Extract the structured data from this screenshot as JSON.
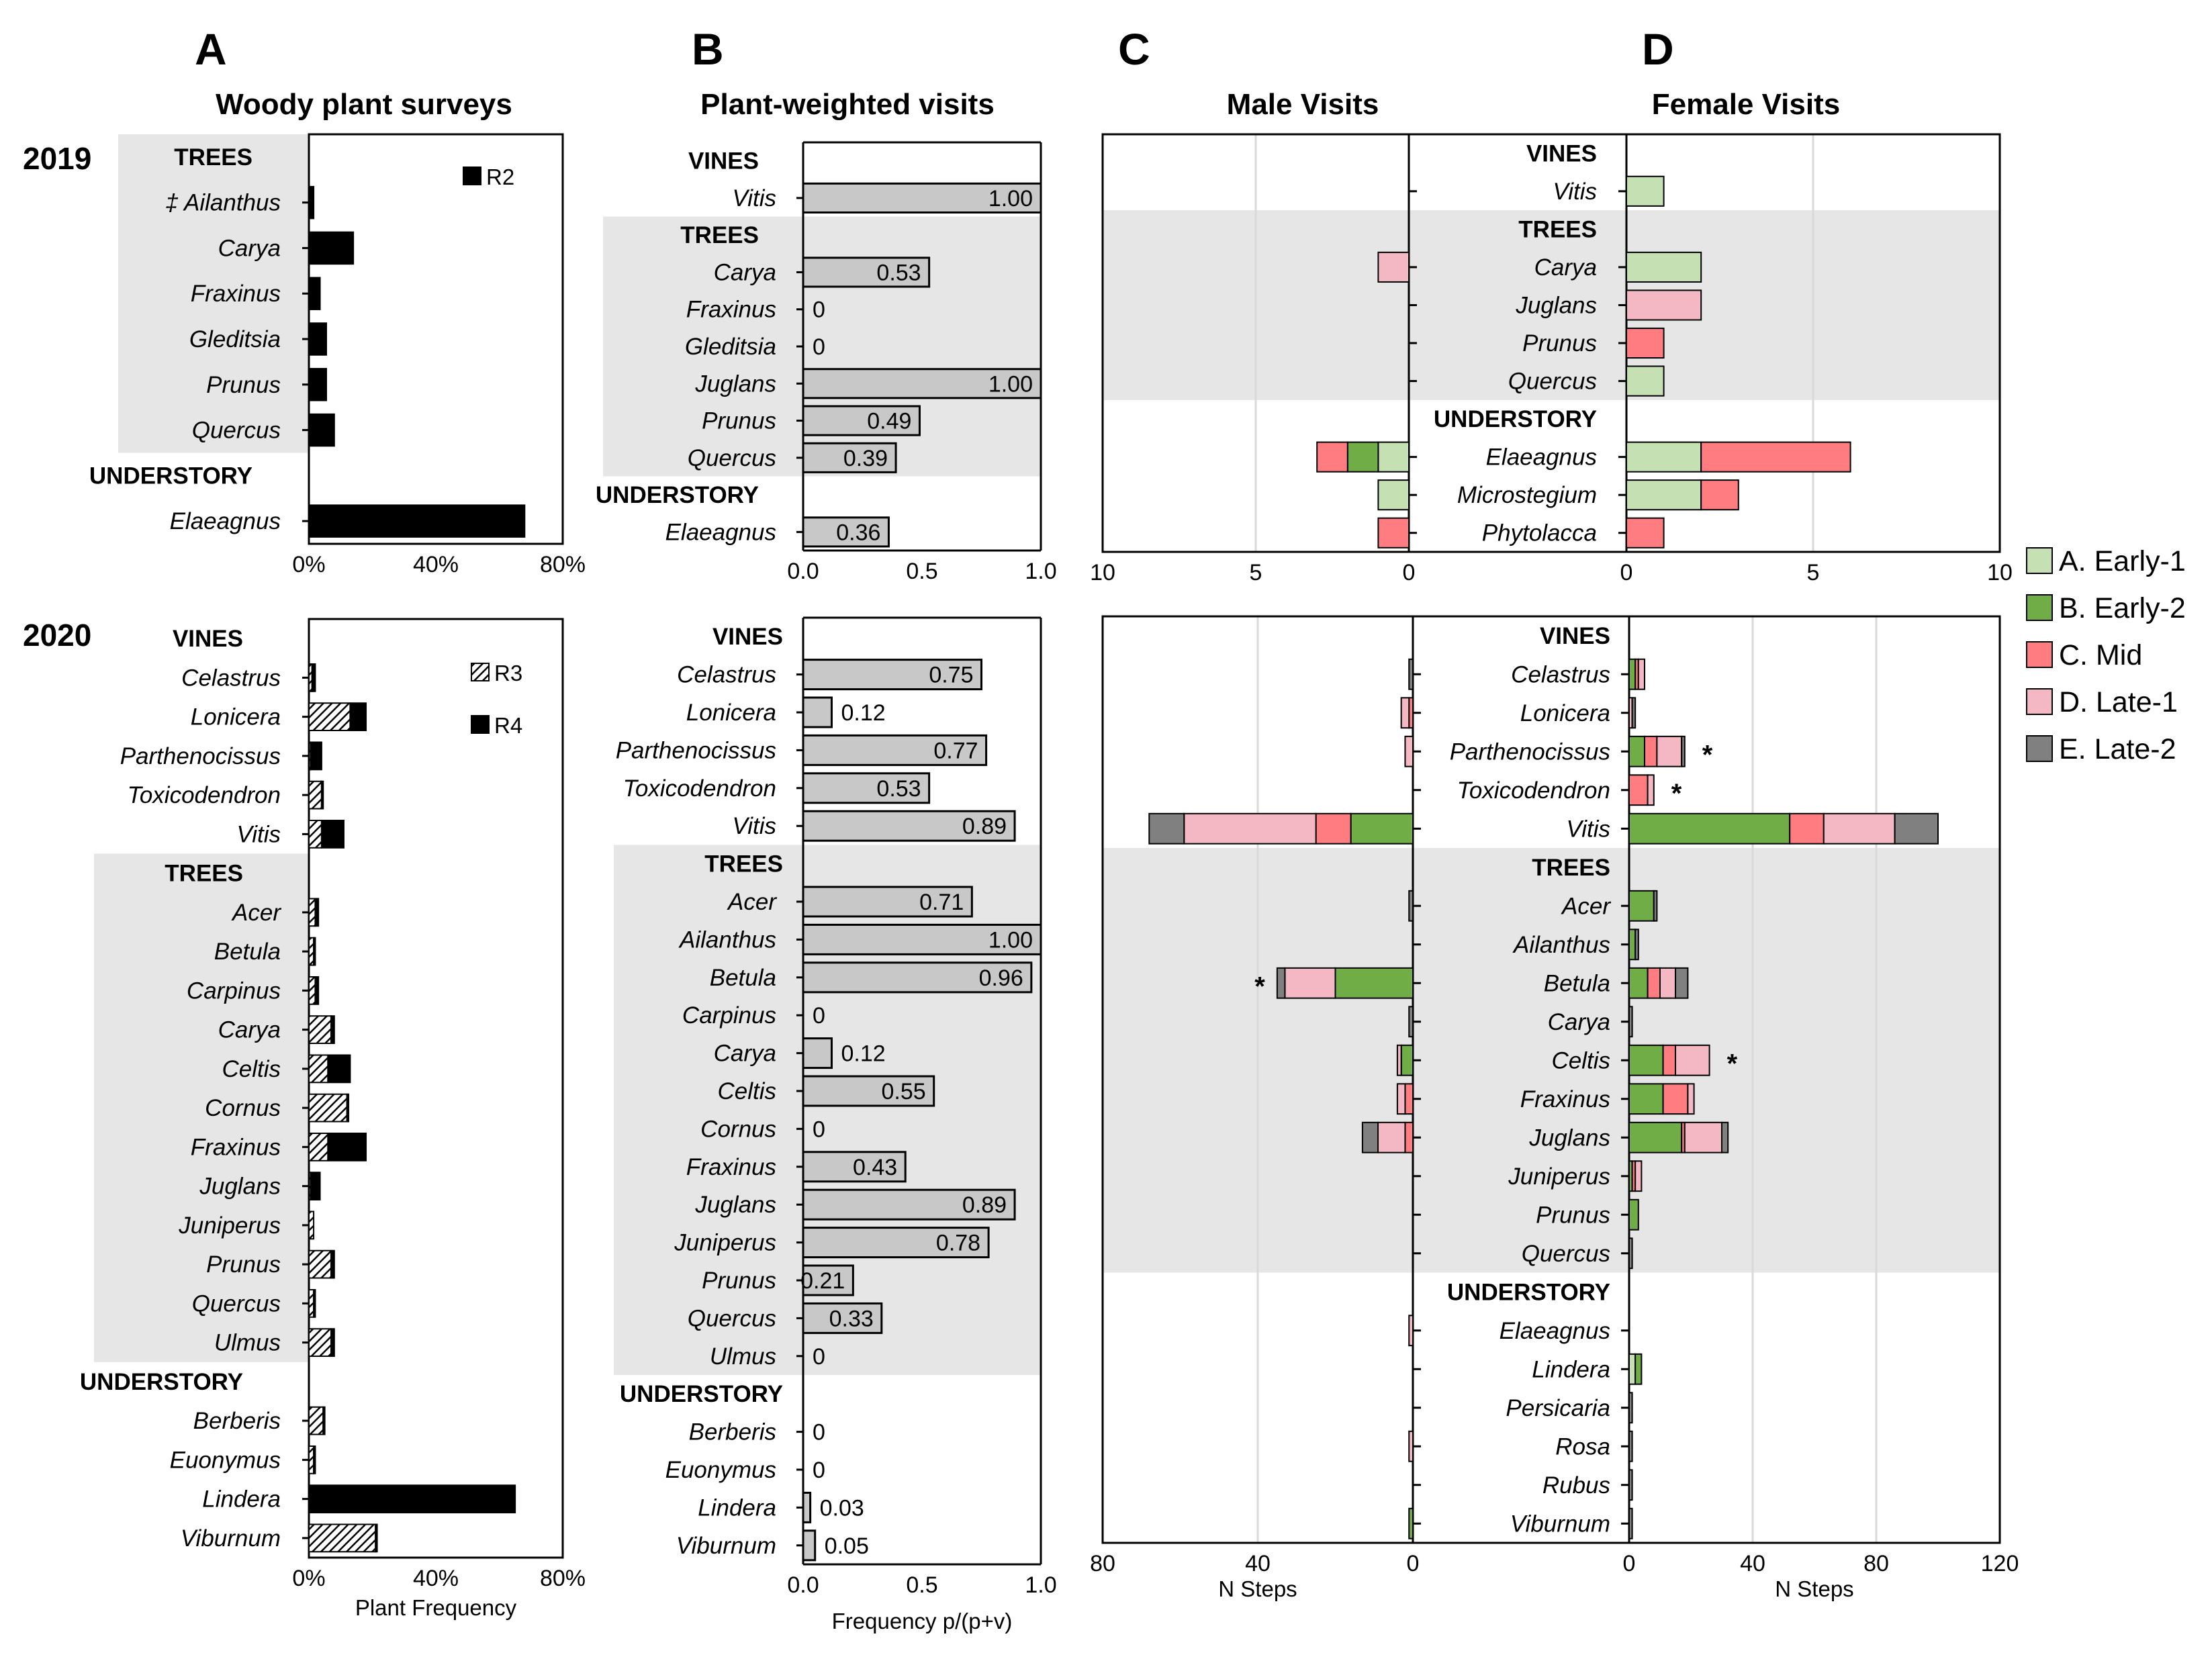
{
  "colors": {
    "shade": "#e6e6e6",
    "bar_black": "#000000",
    "bar_gray": "#c8c8c8",
    "early1": "#c5e0b3",
    "early2": "#70ad47",
    "mid": "#ff7c80",
    "late1": "#f4b8c4",
    "late2": "#808080",
    "grid": "#d9d9d9"
  },
  "panel_letters": [
    "A",
    "B",
    "C",
    "D"
  ],
  "panel_titles": [
    "Woody plant surveys",
    "Plant-weighted visits",
    "Male Visits",
    "Female Visits"
  ],
  "years": [
    "2019",
    "2020"
  ],
  "stage_legend": [
    {
      "label": "A. Early-1",
      "color_key": "early1"
    },
    {
      "label": "B. Early-2",
      "color_key": "early2"
    },
    {
      "label": "C. Mid",
      "color_key": "mid"
    },
    {
      "label": "D. Late-1",
      "color_key": "late1"
    },
    {
      "label": "E. Late-2",
      "color_key": "late2"
    }
  ],
  "survey_legend": {
    "r2": "R2",
    "r3": "R3",
    "r4": "R4"
  },
  "chart_data": [
    {
      "id": "A2019",
      "type": "bar",
      "orientation": "horizontal",
      "title": "Woody plant surveys",
      "panel": "A",
      "year": "2019",
      "categories": [
        "‡ Ailanthus",
        "Carya",
        "Fraxinus",
        "Gleditsia",
        "Prunus",
        "Quercus",
        "Elaeagnus"
      ],
      "groups": [
        {
          "label": "TREES",
          "categories": [
            "‡ Ailanthus",
            "Carya",
            "Fraxinus",
            "Gleditsia",
            "Prunus",
            "Quercus"
          ]
        },
        {
          "label": "UNDERSTORY",
          "categories": [
            "Elaeagnus"
          ]
        }
      ],
      "series": [
        {
          "name": "R2",
          "values": [
            1.5,
            14,
            3.5,
            5.5,
            5.5,
            8,
            68
          ]
        }
      ],
      "xlim": [
        0,
        80
      ],
      "xticks": [
        "0%",
        "40%",
        "80%"
      ],
      "xlabel": ""
    },
    {
      "id": "A2020",
      "type": "bar",
      "orientation": "horizontal",
      "stacked": true,
      "panel": "A",
      "year": "2020",
      "categories": [
        "Celastrus",
        "Lonicera",
        "Parthenocissus",
        "Toxicodendron",
        "Vitis",
        "Acer",
        "Betula",
        "Carpinus",
        "Carya",
        "Celtis",
        "Cornus",
        "Fraxinus",
        "Juglans",
        "Juniperus",
        "Prunus",
        "Quercus",
        "Ulmus",
        "Berberis",
        "Euonymus",
        "Lindera",
        "Viburnum"
      ],
      "groups": [
        {
          "label": "VINES",
          "categories": [
            "Celastrus",
            "Lonicera",
            "Parthenocissus",
            "Toxicodendron",
            "Vitis"
          ]
        },
        {
          "label": "TREES",
          "categories": [
            "Acer",
            "Betula",
            "Carpinus",
            "Carya",
            "Celtis",
            "Cornus",
            "Fraxinus",
            "Juglans",
            "Juniperus",
            "Prunus",
            "Quercus",
            "Ulmus"
          ]
        },
        {
          "label": "UNDERSTORY",
          "categories": [
            "Berberis",
            "Euonymus",
            "Lindera",
            "Viburnum"
          ]
        }
      ],
      "series": [
        {
          "name": "R3",
          "values": [
            1,
            13,
            0.5,
            4,
            4,
            2,
            1.5,
            2,
            7,
            6,
            12,
            6,
            0.5,
            1.5,
            7,
            1.5,
            7,
            4.5,
            1.5,
            0,
            21
          ]
        },
        {
          "name": "R4",
          "values": [
            1,
            5,
            3.5,
            0.5,
            7,
            1,
            0.5,
            1,
            1,
            7,
            0.5,
            12,
            3,
            0,
            1,
            0.5,
            1,
            0.5,
            0.5,
            65,
            0.5
          ]
        }
      ],
      "xlim": [
        0,
        80
      ],
      "xticks": [
        "0%",
        "40%",
        "80%"
      ],
      "xlabel": "Plant Frequency"
    },
    {
      "id": "B2019",
      "type": "bar",
      "orientation": "horizontal",
      "title": "Plant-weighted visits",
      "panel": "B",
      "year": "2019",
      "categories": [
        "Vitis",
        "Carya",
        "Fraxinus",
        "Gleditsia",
        "Juglans",
        "Prunus",
        "Quercus",
        "Elaeagnus"
      ],
      "groups": [
        {
          "label": "VINES",
          "categories": [
            "Vitis"
          ]
        },
        {
          "label": "TREES",
          "categories": [
            "Carya",
            "Fraxinus",
            "Gleditsia",
            "Juglans",
            "Prunus",
            "Quercus"
          ]
        },
        {
          "label": "UNDERSTORY",
          "categories": [
            "Elaeagnus"
          ]
        }
      ],
      "values": [
        1.0,
        0.53,
        0,
        0,
        1.0,
        0.49,
        0.39,
        0.36
      ],
      "value_labels": [
        "1.00",
        "0.53",
        "0",
        "0",
        "1.00",
        "0.49",
        "0.39",
        "0.36"
      ],
      "xlim": [
        0,
        1
      ],
      "xticks": [
        "0.0",
        "0.5",
        "1.0"
      ],
      "xlabel": ""
    },
    {
      "id": "B2020",
      "type": "bar",
      "orientation": "horizontal",
      "panel": "B",
      "year": "2020",
      "categories": [
        "Celastrus",
        "Lonicera",
        "Parthenocissus",
        "Toxicodendron",
        "Vitis",
        "Acer",
        "Ailanthus",
        "Betula",
        "Carpinus",
        "Carya",
        "Celtis",
        "Cornus",
        "Fraxinus",
        "Juglans",
        "Juniperus",
        "Prunus",
        "Quercus",
        "Ulmus",
        "Berberis",
        "Euonymus",
        "Lindera",
        "Viburnum"
      ],
      "groups": [
        {
          "label": "VINES",
          "categories": [
            "Celastrus",
            "Lonicera",
            "Parthenocissus",
            "Toxicodendron",
            "Vitis"
          ]
        },
        {
          "label": "TREES",
          "categories": [
            "Acer",
            "Ailanthus",
            "Betula",
            "Carpinus",
            "Carya",
            "Celtis",
            "Cornus",
            "Fraxinus",
            "Juglans",
            "Juniperus",
            "Prunus",
            "Quercus",
            "Ulmus"
          ]
        },
        {
          "label": "UNDERSTORY",
          "categories": [
            "Berberis",
            "Euonymus",
            "Lindera",
            "Viburnum"
          ]
        }
      ],
      "values": [
        0.75,
        0.12,
        0.77,
        0.53,
        0.89,
        0.71,
        1.0,
        0.96,
        0,
        0.12,
        0.55,
        0,
        0.43,
        0.89,
        0.78,
        0.21,
        0.33,
        0,
        0,
        0,
        0.03,
        0.05
      ],
      "value_labels": [
        "0.75",
        "0.12",
        "0.77",
        "0.53",
        "0.89",
        "0.71",
        "1.00",
        "0.96",
        "0",
        "0.12",
        "0.55",
        "0",
        "0.43",
        "0.89",
        "0.78",
        "0.21",
        "0.33",
        "0",
        "0",
        "0",
        "0.03",
        "0.05"
      ],
      "xlim": [
        0,
        1
      ],
      "xticks": [
        "0.0",
        "0.5",
        "1.0"
      ],
      "xlabel": "Frequency p/(p+v)"
    },
    {
      "id": "CD2019",
      "type": "bar",
      "orientation": "horizontal",
      "stacked": true,
      "mirrored": true,
      "panels": [
        "C",
        "D"
      ],
      "titles": [
        "Male Visits",
        "Female Visits"
      ],
      "year": "2019",
      "categories": [
        "Vitis",
        "Carya",
        "Juglans",
        "Prunus",
        "Quercus",
        "Elaeagnus",
        "Microstegium",
        "Phytolacca"
      ],
      "groups": [
        {
          "label": "VINES",
          "categories": [
            "Vitis"
          ]
        },
        {
          "label": "TREES",
          "categories": [
            "Carya",
            "Juglans",
            "Prunus",
            "Quercus"
          ]
        },
        {
          "label": "UNDERSTORY",
          "categories": [
            "Elaeagnus",
            "Microstegium",
            "Phytolacca"
          ]
        }
      ],
      "series_names": [
        "A. Early-1",
        "B. Early-2",
        "C. Mid",
        "D. Late-1",
        "E. Late-2"
      ],
      "male": {
        "A. Early-1": [
          0,
          0,
          0,
          0,
          0,
          1,
          1,
          0
        ],
        "B. Early-2": [
          0,
          0,
          0,
          0,
          0,
          1,
          0,
          0
        ],
        "C. Mid": [
          0,
          0,
          0,
          0,
          0,
          1,
          0,
          1
        ],
        "D. Late-1": [
          0,
          1,
          0,
          0,
          0,
          0,
          0,
          0
        ],
        "E. Late-2": [
          0,
          0,
          0,
          0,
          0,
          0,
          0,
          0
        ]
      },
      "female": {
        "A. Early-1": [
          1,
          2,
          0,
          0,
          1,
          2,
          2,
          0
        ],
        "B. Early-2": [
          0,
          0,
          0,
          0,
          0,
          0,
          0,
          0
        ],
        "C. Mid": [
          0,
          0,
          0,
          1,
          0,
          4,
          1,
          1
        ],
        "D. Late-1": [
          0,
          0,
          2,
          0,
          0,
          0,
          0,
          0
        ],
        "E. Late-2": [
          0,
          0,
          0,
          0,
          0,
          0,
          0,
          0
        ]
      },
      "male_xlim": [
        10,
        0
      ],
      "female_xlim": [
        0,
        10
      ],
      "male_xticks": [
        "10",
        "5",
        "0"
      ],
      "female_xticks": [
        "0",
        "5",
        "10"
      ],
      "xlabel": ""
    },
    {
      "id": "CD2020",
      "type": "bar",
      "orientation": "horizontal",
      "stacked": true,
      "mirrored": true,
      "panels": [
        "C",
        "D"
      ],
      "year": "2020",
      "categories": [
        "Celastrus",
        "Lonicera",
        "Parthenocissus",
        "Toxicodendron",
        "Vitis",
        "Acer",
        "Ailanthus",
        "Betula",
        "Carya",
        "Celtis",
        "Fraxinus",
        "Juglans",
        "Juniperus",
        "Prunus",
        "Quercus",
        "Elaeagnus",
        "Lindera",
        "Persicaria",
        "Rosa",
        "Rubus",
        "Viburnum"
      ],
      "groups": [
        {
          "label": "VINES",
          "categories": [
            "Celastrus",
            "Lonicera",
            "Parthenocissus",
            "Toxicodendron",
            "Vitis"
          ]
        },
        {
          "label": "TREES",
          "categories": [
            "Acer",
            "Ailanthus",
            "Betula",
            "Carya",
            "Celtis",
            "Fraxinus",
            "Juglans",
            "Juniperus",
            "Prunus",
            "Quercus"
          ]
        },
        {
          "label": "UNDERSTORY",
          "categories": [
            "Elaeagnus",
            "Lindera",
            "Persicaria",
            "Rosa",
            "Rubus",
            "Viburnum"
          ]
        }
      ],
      "series_names": [
        "A. Early-1",
        "B. Early-2",
        "C. Mid",
        "D. Late-1",
        "E. Late-2"
      ],
      "male": {
        "A. Early-1": [
          0,
          0,
          0,
          0,
          0,
          0,
          0,
          0,
          0,
          0,
          0,
          0,
          0,
          0,
          0,
          0,
          0,
          0,
          0,
          0,
          0
        ],
        "B. Early-2": [
          0,
          0,
          0,
          0,
          16,
          0,
          0,
          20,
          0,
          3,
          0,
          0,
          0,
          0,
          0,
          0,
          0,
          0,
          0,
          0,
          1
        ],
        "C. Mid": [
          0,
          1,
          0,
          0,
          9,
          0,
          0,
          0,
          0,
          0,
          2,
          2,
          0,
          0,
          0,
          0,
          0,
          0,
          0,
          0,
          0
        ],
        "D. Late-1": [
          0,
          2,
          2,
          0,
          34,
          0,
          0,
          13,
          0,
          1,
          2,
          7,
          0,
          0,
          0,
          1,
          0,
          0,
          1,
          0,
          0
        ],
        "E. Late-2": [
          1,
          0,
          0,
          0,
          9,
          1,
          0,
          2,
          1,
          0,
          0,
          4,
          0,
          0,
          0,
          0,
          0,
          0,
          0,
          0,
          0
        ]
      },
      "female": {
        "A. Early-1": [
          0,
          0,
          0,
          0,
          0,
          0,
          0,
          0,
          0,
          0,
          0,
          0,
          0,
          0,
          0,
          0,
          2,
          0,
          0,
          0,
          0
        ],
        "B. Early-2": [
          2,
          0,
          5,
          0,
          52,
          8,
          2,
          6,
          0,
          11,
          11,
          17,
          1,
          3,
          0,
          0,
          2,
          0,
          0,
          0,
          0
        ],
        "C. Mid": [
          1,
          0,
          4,
          6,
          11,
          0,
          0,
          4,
          0,
          4,
          8,
          1,
          1,
          0,
          0,
          0,
          0,
          0,
          0,
          0,
          0
        ],
        "D. Late-1": [
          2,
          1,
          8,
          2,
          23,
          0,
          0,
          5,
          0,
          11,
          2,
          12,
          2,
          0,
          0,
          0,
          0,
          0,
          0,
          0,
          0
        ],
        "E. Late-2": [
          0,
          1,
          1,
          0,
          14,
          1,
          1,
          4,
          1,
          0,
          0,
          2,
          0,
          0,
          1,
          0,
          0,
          1,
          1,
          1,
          1
        ]
      },
      "significant": {
        "male": [
          "Betula"
        ],
        "female": [
          "Parthenocissus",
          "Toxicodendron",
          "Celtis"
        ]
      },
      "significance_marker": "*",
      "male_xlim": [
        80,
        0
      ],
      "female_xlim": [
        0,
        120
      ],
      "male_xticks": [
        "80",
        "40",
        "0"
      ],
      "female_xticks": [
        "0",
        "40",
        "80",
        "120"
      ],
      "male_xlabel": "N Steps",
      "female_xlabel": "N Steps"
    }
  ]
}
